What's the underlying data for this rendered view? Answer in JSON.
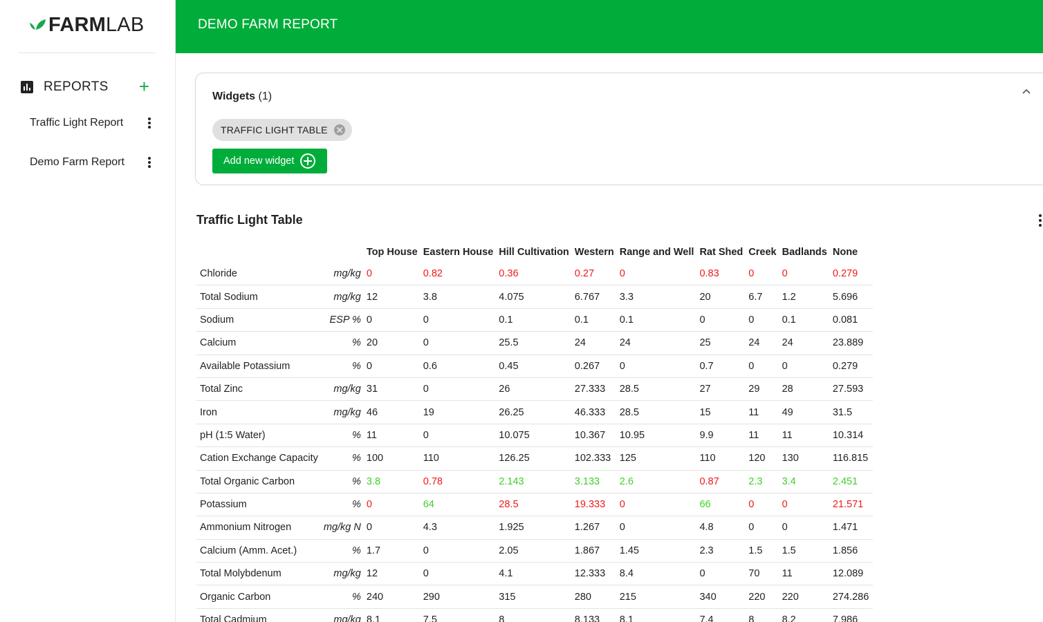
{
  "brand": {
    "farm": "FARM",
    "lab": "LAB",
    "leaf_color": "#16a84a"
  },
  "sidebar": {
    "reports_label": "REPORTS",
    "add_icon": "plus-icon",
    "items": [
      {
        "label": "Traffic Light Report"
      },
      {
        "label": "Demo Farm Report"
      }
    ]
  },
  "header": {
    "title": "DEMO FARM REPORT",
    "color": "#00ad3a"
  },
  "widgets": {
    "title": "Widgets",
    "count": "(1)",
    "chips": [
      {
        "label": "TRAFFIC LIGHT TABLE"
      }
    ],
    "add_button": "Add new widget"
  },
  "traffic_table": {
    "title": "Traffic Light Table",
    "columns": [
      "Top House",
      "Eastern House",
      "Hill Cultivation",
      "Western",
      "Range and Well",
      "Rat Shed",
      "Creek",
      "Badlands",
      "None"
    ],
    "colors": {
      "red": "#f01818",
      "green": "#3fcf28"
    },
    "rows": [
      {
        "name": "Chloride",
        "unit": "mg/kg",
        "values": [
          "0",
          "0.82",
          "0.36",
          "0.27",
          "0",
          "0.83",
          "0",
          "0",
          "0.279"
        ],
        "status": [
          "red",
          "red",
          "red",
          "red",
          "red",
          "red",
          "red",
          "red",
          "red"
        ]
      },
      {
        "name": "Total Sodium",
        "unit": "mg/kg",
        "values": [
          "12",
          "3.8",
          "4.075",
          "6.767",
          "3.3",
          "20",
          "6.7",
          "1.2",
          "5.696"
        ],
        "status": [
          "",
          "",
          "",
          "",
          "",
          "",
          "",
          "",
          ""
        ]
      },
      {
        "name": "Sodium",
        "unit": "ESP %",
        "values": [
          "0",
          "0",
          "0.1",
          "0.1",
          "0.1",
          "0",
          "0",
          "0.1",
          "0.081"
        ],
        "status": [
          "",
          "",
          "",
          "",
          "",
          "",
          "",
          "",
          ""
        ]
      },
      {
        "name": "Calcium",
        "unit": "%",
        "values": [
          "20",
          "0",
          "25.5",
          "24",
          "24",
          "25",
          "24",
          "24",
          "23.889"
        ],
        "status": [
          "",
          "",
          "",
          "",
          "",
          "",
          "",
          "",
          ""
        ]
      },
      {
        "name": "Available Potassium",
        "unit": "%",
        "values": [
          "0",
          "0.6",
          "0.45",
          "0.267",
          "0",
          "0.7",
          "0",
          "0",
          "0.279"
        ],
        "status": [
          "",
          "",
          "",
          "",
          "",
          "",
          "",
          "",
          ""
        ]
      },
      {
        "name": "Total Zinc",
        "unit": "mg/kg",
        "values": [
          "31",
          "0",
          "26",
          "27.333",
          "28.5",
          "27",
          "29",
          "28",
          "27.593"
        ],
        "status": [
          "",
          "",
          "",
          "",
          "",
          "",
          "",
          "",
          ""
        ]
      },
      {
        "name": "Iron",
        "unit": "mg/kg",
        "values": [
          "46",
          "19",
          "26.25",
          "46.333",
          "28.5",
          "15",
          "11",
          "49",
          "31.5"
        ],
        "status": [
          "",
          "",
          "",
          "",
          "",
          "",
          "",
          "",
          ""
        ]
      },
      {
        "name": "pH (1:5 Water)",
        "unit": "%",
        "values": [
          "11",
          "0",
          "10.075",
          "10.367",
          "10.95",
          "9.9",
          "11",
          "11",
          "10.314"
        ],
        "status": [
          "",
          "",
          "",
          "",
          "",
          "",
          "",
          "",
          ""
        ]
      },
      {
        "name": "Cation Exchange Capacity",
        "unit": "%",
        "values": [
          "100",
          "110",
          "126.25",
          "102.333",
          "125",
          "110",
          "120",
          "130",
          "116.815"
        ],
        "status": [
          "",
          "",
          "",
          "",
          "",
          "",
          "",
          "",
          ""
        ]
      },
      {
        "name": "Total Organic Carbon",
        "unit": "%",
        "values": [
          "3.8",
          "0.78",
          "2.143",
          "3.133",
          "2.6",
          "0.87",
          "2.3",
          "3.4",
          "2.451"
        ],
        "status": [
          "green",
          "red",
          "green",
          "green",
          "green",
          "red",
          "green",
          "green",
          "green"
        ]
      },
      {
        "name": "Potassium",
        "unit": "%",
        "values": [
          "0",
          "64",
          "28.5",
          "19.333",
          "0",
          "66",
          "0",
          "0",
          "21.571"
        ],
        "status": [
          "red",
          "green",
          "red",
          "red",
          "red",
          "green",
          "red",
          "red",
          "red"
        ]
      },
      {
        "name": "Ammonium Nitrogen",
        "unit": "mg/kg N",
        "values": [
          "0",
          "4.3",
          "1.925",
          "1.267",
          "0",
          "4.8",
          "0",
          "0",
          "1.471"
        ],
        "status": [
          "",
          "",
          "",
          "",
          "",
          "",
          "",
          "",
          ""
        ]
      },
      {
        "name": "Calcium (Amm. Acet.)",
        "unit": "%",
        "values": [
          "1.7",
          "0",
          "2.05",
          "1.867",
          "1.45",
          "2.3",
          "1.5",
          "1.5",
          "1.856"
        ],
        "status": [
          "",
          "",
          "",
          "",
          "",
          "",
          "",
          "",
          ""
        ]
      },
      {
        "name": "Total Molybdenum",
        "unit": "mg/kg",
        "values": [
          "12",
          "0",
          "4.1",
          "12.333",
          "8.4",
          "0",
          "70",
          "11",
          "12.089"
        ],
        "status": [
          "",
          "",
          "",
          "",
          "",
          "",
          "",
          "",
          ""
        ]
      },
      {
        "name": "Organic Carbon",
        "unit": "%",
        "values": [
          "240",
          "290",
          "315",
          "280",
          "215",
          "340",
          "220",
          "220",
          "274.286"
        ],
        "status": [
          "",
          "",
          "",
          "",
          "",
          "",
          "",
          "",
          ""
        ]
      },
      {
        "name": "Total Cadmium",
        "unit": "mg/kg",
        "values": [
          "8.1",
          "7.5",
          "8",
          "8.133",
          "8.1",
          "7.4",
          "8",
          "8.2",
          "7.986"
        ],
        "status": [
          "",
          "",
          "",
          "",
          "",
          "",
          "",
          "",
          ""
        ]
      }
    ]
  }
}
